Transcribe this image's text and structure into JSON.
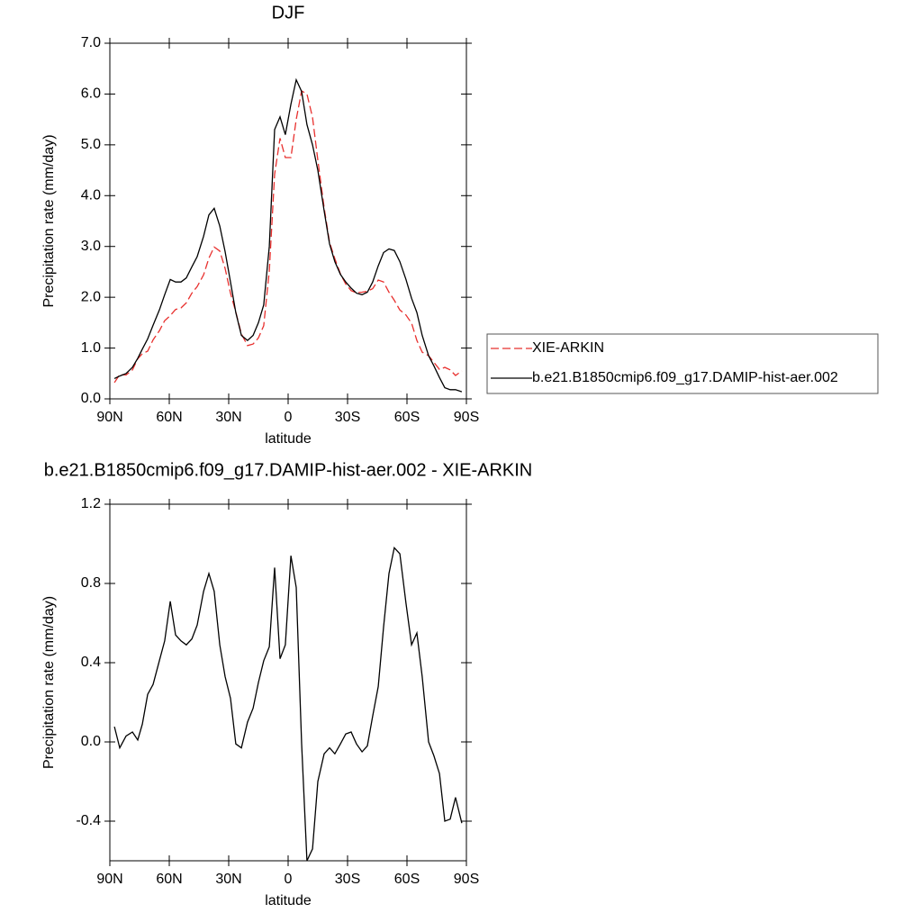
{
  "chart_data": [
    {
      "type": "line",
      "title": "DJF",
      "x_label": "latitude",
      "y_label": "Precipitation rate (mm/day)",
      "x": [
        87.7,
        85,
        81.8,
        78.6,
        75.9,
        73.6,
        70.9,
        68.2,
        65,
        62.3,
        59.5,
        56.8,
        54.1,
        51.4,
        48.6,
        45.9,
        42.7,
        40,
        37.3,
        34.5,
        31.8,
        29.1,
        26.4,
        23.6,
        20.5,
        17.7,
        15,
        12.3,
        9.5,
        6.8,
        4.1,
        1.4,
        -1.4,
        -4.1,
        -6.8,
        -9.5,
        -12.3,
        -15,
        -18.2,
        -20.9,
        -23.6,
        -26.4,
        -29.1,
        -31.8,
        -34.5,
        -37.3,
        -40,
        -42.7,
        -45.5,
        -48.2,
        -50.9,
        -53.6,
        -56.4,
        -59.5,
        -62.3,
        -65,
        -67.7,
        -70.9,
        -73.6,
        -76.4,
        -79.1,
        -81.8,
        -84.5,
        -87.7
      ],
      "series": [
        {
          "name": "XIE-ARKIN",
          "color": "#e8302e",
          "dash": true,
          "values": [
            0.32,
            0.48,
            0.47,
            0.57,
            0.79,
            0.89,
            0.94,
            1.16,
            1.34,
            1.54,
            1.64,
            1.76,
            1.79,
            1.89,
            2.08,
            2.21,
            2.44,
            2.77,
            2.99,
            2.91,
            2.57,
            2.08,
            1.71,
            1.28,
            1.05,
            1.08,
            1.2,
            1.44,
            2.52,
            4.42,
            5.13,
            4.75,
            4.75,
            5.5,
            6.06,
            6.0,
            5.54,
            4.7,
            3.76,
            3.08,
            2.76,
            2.46,
            2.26,
            2.13,
            2.09,
            2.1,
            2.12,
            2.17,
            2.34,
            2.3,
            2.1,
            1.94,
            1.75,
            1.65,
            1.49,
            1.15,
            0.92,
            0.85,
            0.72,
            0.58,
            0.62,
            0.57,
            0.46,
            0.55
          ]
        },
        {
          "name": "b.e21.B1850cmip6.f09_g17.DAMIP-hist-aer.002",
          "color": "#000000",
          "dash": false,
          "values": [
            0.4,
            0.45,
            0.5,
            0.62,
            0.8,
            0.98,
            1.18,
            1.45,
            1.75,
            2.05,
            2.35,
            2.3,
            2.3,
            2.38,
            2.6,
            2.8,
            3.2,
            3.62,
            3.75,
            3.4,
            2.9,
            2.3,
            1.7,
            1.25,
            1.15,
            1.25,
            1.5,
            1.85,
            3.0,
            5.3,
            5.55,
            5.2,
            5.8,
            6.28,
            6.05,
            5.4,
            5.0,
            4.5,
            3.7,
            3.05,
            2.7,
            2.45,
            2.3,
            2.18,
            2.08,
            2.05,
            2.1,
            2.3,
            2.62,
            2.88,
            2.95,
            2.92,
            2.7,
            2.35,
            1.98,
            1.7,
            1.25,
            0.85,
            0.65,
            0.42,
            0.22,
            0.18,
            0.18,
            0.14
          ]
        }
      ],
      "xlim": [
        90,
        -90
      ],
      "xticks": [
        {
          "value": 90,
          "label": "90N"
        },
        {
          "value": 60,
          "label": "60N"
        },
        {
          "value": 30,
          "label": "30N"
        },
        0,
        {
          "value": -30,
          "label": "30S"
        },
        {
          "value": -60,
          "label": "60S"
        },
        {
          "value": -90,
          "label": "90S"
        }
      ],
      "ylim": [
        0,
        7
      ],
      "yticks": [
        {
          "value": 0,
          "label": "0.0"
        },
        {
          "value": 1,
          "label": "1.0"
        },
        {
          "value": 2,
          "label": "2.0"
        },
        {
          "value": 3,
          "label": "3.0"
        },
        {
          "value": 4,
          "label": "4.0"
        },
        {
          "value": 5,
          "label": "5.0"
        },
        {
          "value": 6,
          "label": "6.0"
        },
        {
          "value": 7,
          "label": "7.0"
        }
      ],
      "legend": "right"
    },
    {
      "type": "line",
      "title": "b.e21.B1850cmip6.f09_g17.DAMIP-hist-aer.002 - XIE-ARKIN",
      "x_label": "latitude",
      "y_label": "Precipitation rate (mm/day)",
      "x": [
        87.7,
        85,
        81.8,
        78.6,
        75.9,
        73.6,
        70.9,
        68.2,
        65,
        62.3,
        59.5,
        56.8,
        54.1,
        51.4,
        48.6,
        45.9,
        42.7,
        40,
        37.3,
        34.5,
        31.8,
        29.1,
        26.4,
        23.6,
        20.5,
        17.7,
        15,
        12.3,
        9.5,
        6.8,
        4.1,
        1.4,
        -1.4,
        -4.1,
        -6.8,
        -9.5,
        -12.3,
        -15,
        -18.2,
        -20.9,
        -23.6,
        -26.4,
        -29.1,
        -31.8,
        -34.5,
        -37.3,
        -40,
        -42.7,
        -45.5,
        -48.2,
        -50.9,
        -53.6,
        -56.4,
        -59.5,
        -62.3,
        -65,
        -67.7,
        -70.9,
        -73.6,
        -76.4,
        -79.1,
        -81.8,
        -84.5,
        -87.7
      ],
      "series": [
        {
          "color": "#000000",
          "dash": false,
          "values": [
            0.077,
            -0.03,
            0.03,
            0.05,
            0.01,
            0.09,
            0.24,
            0.29,
            0.41,
            0.51,
            0.71,
            0.54,
            0.51,
            0.49,
            0.52,
            0.59,
            0.76,
            0.85,
            0.76,
            0.49,
            0.33,
            0.22,
            -0.01,
            -0.03,
            0.1,
            0.17,
            0.3,
            0.41,
            0.48,
            0.88,
            0.42,
            0.49,
            0.94,
            0.78,
            -0.01,
            -0.6,
            -0.54,
            -0.2,
            -0.06,
            -0.03,
            -0.06,
            -0.01,
            0.04,
            0.05,
            -0.01,
            -0.05,
            -0.02,
            0.13,
            0.28,
            0.58,
            0.85,
            0.98,
            0.95,
            0.7,
            0.49,
            0.55,
            0.33,
            0.0,
            -0.07,
            -0.16,
            -0.4,
            -0.39,
            -0.28,
            -0.41
          ]
        }
      ],
      "xlim": [
        90,
        -90
      ],
      "xticks": [
        {
          "value": 90,
          "label": "90N"
        },
        {
          "value": 60,
          "label": "60N"
        },
        {
          "value": 30,
          "label": "30N"
        },
        0,
        {
          "value": -30,
          "label": "30S"
        },
        {
          "value": -60,
          "label": "60S"
        },
        {
          "value": -90,
          "label": "90S"
        }
      ],
      "ylim": [
        -0.6,
        1.2
      ],
      "yticks": [
        -0.4,
        {
          "value": 0,
          "label": "0.0"
        },
        0.4,
        0.8,
        1.2
      ]
    }
  ]
}
